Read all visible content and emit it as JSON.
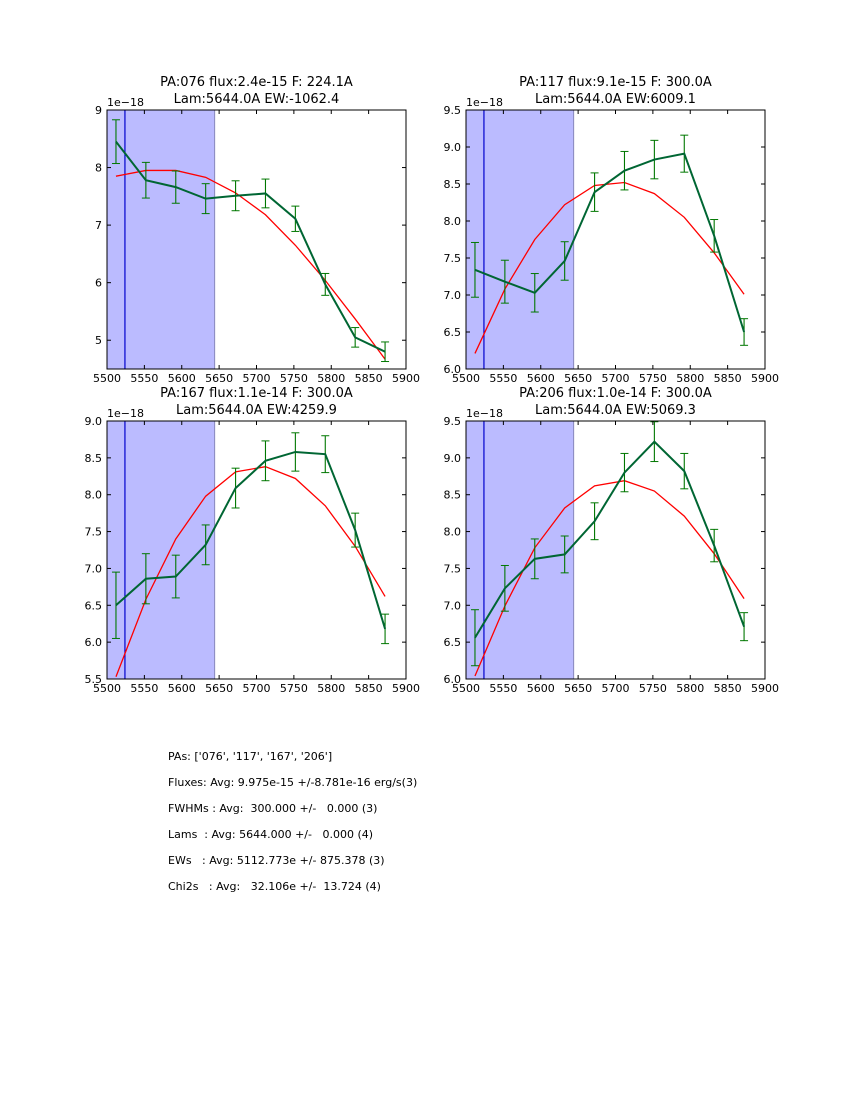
{
  "colors": {
    "data_line": "#006633",
    "errorbar": "#007700",
    "model_line": "#ff0000",
    "shade": "#bbbbff",
    "shade_edge": "#8888bb",
    "vline": "#0000cc"
  },
  "chart_data": [
    {
      "type": "line",
      "title_line1": "PA:076 flux:2.4e-15 F: 224.1A",
      "title_line2": "Lam:5644.0A EW:-1062.4",
      "offset_label": "1e−18",
      "xlim": [
        5500,
        5900
      ],
      "ylim": [
        4.5,
        9
      ],
      "xticks": [
        "5500",
        "5550",
        "5600",
        "5650",
        "5700",
        "5750",
        "5800",
        "5850",
        "5900"
      ],
      "yticks": [
        "5",
        "6",
        "7",
        "8",
        "9"
      ],
      "ytick_values": [
        5,
        6,
        7,
        8,
        9
      ],
      "shaded_region": [
        5500,
        5644
      ],
      "vline_x": 5524,
      "x": [
        5512,
        5552,
        5592,
        5632,
        5672,
        5712,
        5752,
        5792,
        5832,
        5872
      ],
      "series": [
        {
          "name": "data",
          "values": [
            8.45,
            7.78,
            7.66,
            7.46,
            7.51,
            7.55,
            7.11,
            5.97,
            5.05,
            4.8
          ],
          "errors": [
            0.38,
            0.31,
            0.28,
            0.26,
            0.26,
            0.25,
            0.22,
            0.19,
            0.17,
            0.17
          ]
        },
        {
          "name": "model",
          "values": [
            7.85,
            7.95,
            7.95,
            7.83,
            7.56,
            7.18,
            6.65,
            6.04,
            5.37,
            4.67
          ]
        }
      ]
    },
    {
      "type": "line",
      "title_line1": "PA:117 flux:9.1e-15 F: 300.0A",
      "title_line2": "Lam:5644.0A EW:6009.1",
      "offset_label": "1e−18",
      "xlim": [
        5500,
        5900
      ],
      "ylim": [
        6.0,
        9.5
      ],
      "xticks": [
        "5500",
        "5550",
        "5600",
        "5650",
        "5700",
        "5750",
        "5800",
        "5850",
        "5900"
      ],
      "yticks": [
        "6.0",
        "6.5",
        "7.0",
        "7.5",
        "8.0",
        "8.5",
        "9.0",
        "9.5"
      ],
      "ytick_values": [
        6.0,
        6.5,
        7.0,
        7.5,
        8.0,
        8.5,
        9.0,
        9.5
      ],
      "shaded_region": [
        5500,
        5644
      ],
      "vline_x": 5524,
      "x": [
        5512,
        5552,
        5592,
        5632,
        5672,
        5712,
        5752,
        5792,
        5832,
        5872
      ],
      "series": [
        {
          "name": "data",
          "values": [
            7.34,
            7.18,
            7.03,
            7.46,
            8.39,
            8.68,
            8.83,
            8.91,
            7.8,
            6.5
          ],
          "errors": [
            0.37,
            0.29,
            0.26,
            0.26,
            0.26,
            0.26,
            0.26,
            0.25,
            0.22,
            0.18
          ]
        },
        {
          "name": "model",
          "values": [
            6.21,
            7.08,
            7.75,
            8.22,
            8.48,
            8.52,
            8.37,
            8.05,
            7.57,
            7.01
          ]
        }
      ]
    },
    {
      "type": "line",
      "title_line1": "PA:167 flux:1.1e-14 F: 300.0A",
      "title_line2": "Lam:5644.0A EW:4259.9",
      "offset_label": "1e−18",
      "xlim": [
        5500,
        5900
      ],
      "ylim": [
        5.5,
        9.0
      ],
      "xticks": [
        "5500",
        "5550",
        "5600",
        "5650",
        "5700",
        "5750",
        "5800",
        "5850",
        "5900"
      ],
      "yticks": [
        "5.5",
        "6.0",
        "6.5",
        "7.0",
        "7.5",
        "8.0",
        "8.5",
        "9.0"
      ],
      "ytick_values": [
        5.5,
        6.0,
        6.5,
        7.0,
        7.5,
        8.0,
        8.5,
        9.0
      ],
      "shaded_region": [
        5500,
        5644
      ],
      "vline_x": 5524,
      "x": [
        5512,
        5552,
        5592,
        5632,
        5672,
        5712,
        5752,
        5792,
        5832,
        5872
      ],
      "series": [
        {
          "name": "data",
          "values": [
            6.5,
            6.86,
            6.89,
            7.32,
            8.09,
            8.46,
            8.58,
            8.55,
            7.52,
            6.18
          ],
          "errors": [
            0.45,
            0.34,
            0.29,
            0.27,
            0.27,
            0.27,
            0.26,
            0.25,
            0.23,
            0.2
          ]
        },
        {
          "name": "model",
          "values": [
            5.53,
            6.58,
            7.4,
            7.98,
            8.31,
            8.38,
            8.22,
            7.85,
            7.3,
            6.62
          ]
        }
      ]
    },
    {
      "type": "line",
      "title_line1": "PA:206 flux:1.0e-14 F: 300.0A",
      "title_line2": "Lam:5644.0A EW:5069.3",
      "offset_label": "1e−18",
      "xlim": [
        5500,
        5900
      ],
      "ylim": [
        6.0,
        9.5
      ],
      "xticks": [
        "5500",
        "5550",
        "5600",
        "5650",
        "5700",
        "5750",
        "5800",
        "5850",
        "5900"
      ],
      "yticks": [
        "6.0",
        "6.5",
        "7.0",
        "7.5",
        "8.0",
        "8.5",
        "9.0",
        "9.5"
      ],
      "ytick_values": [
        6.0,
        6.5,
        7.0,
        7.5,
        8.0,
        8.5,
        9.0,
        9.5
      ],
      "shaded_region": [
        5500,
        5644
      ],
      "vline_x": 5524,
      "x": [
        5512,
        5552,
        5592,
        5632,
        5672,
        5712,
        5752,
        5792,
        5832,
        5872
      ],
      "series": [
        {
          "name": "data",
          "values": [
            6.56,
            7.23,
            7.63,
            7.69,
            8.14,
            8.8,
            9.22,
            8.82,
            7.81,
            6.71
          ],
          "errors": [
            0.38,
            0.31,
            0.27,
            0.25,
            0.25,
            0.26,
            0.27,
            0.24,
            0.22,
            0.19
          ]
        },
        {
          "name": "model",
          "values": [
            6.04,
            6.99,
            7.78,
            8.32,
            8.62,
            8.69,
            8.55,
            8.21,
            7.7,
            7.09
          ]
        }
      ]
    }
  ],
  "summary": {
    "lines": [
      "PAs: ['076', '117', '167', '206']",
      "Fluxes: Avg: 9.975e-15 +/-8.781e-16 erg/s(3)",
      "FWHMs : Avg:  300.000 +/-   0.000 (3)",
      "Lams  : Avg: 5644.000 +/-   0.000 (4)",
      "EWs   : Avg: 5112.773e +/- 875.378 (3)",
      "Chi2s   : Avg:   32.106e +/-  13.724 (4)"
    ]
  }
}
